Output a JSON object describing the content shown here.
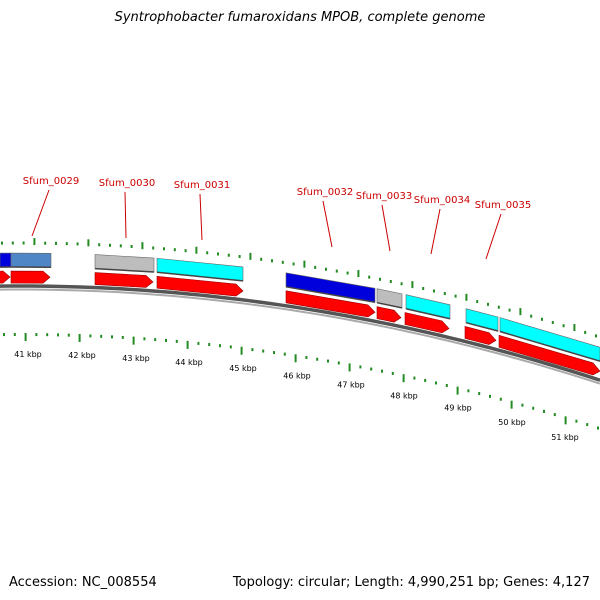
{
  "title": "Syntrophobacter fumaroxidans MPOB, complete genome",
  "footer": {
    "accession": "Accession: NC_008554",
    "summary": "Topology: circular; Length: 4,990,251 bp; Genes: 4,127"
  },
  "colors": {
    "backbone": "#808080",
    "tick": "#228b22",
    "label": "#cc0000",
    "red": "#ff0000",
    "blue": "#0000dd",
    "steelblue": "#4f86c6",
    "gray": "#bdbdbd",
    "cyan": "#00ffff"
  },
  "axis": {
    "scale_labels": [
      "41 kbp",
      "42 kbp",
      "43 kbp",
      "44 kbp",
      "45 kbp",
      "46 kbp",
      "47 kbp",
      "48 kbp",
      "49 kbp",
      "50 kbp",
      "51 kbp"
    ]
  },
  "gene_labels": [
    "Sfum_0029",
    "Sfum_0030",
    "Sfum_0031",
    "Sfum_0032",
    "Sfum_0033",
    "Sfum_0034",
    "Sfum_0035"
  ]
}
